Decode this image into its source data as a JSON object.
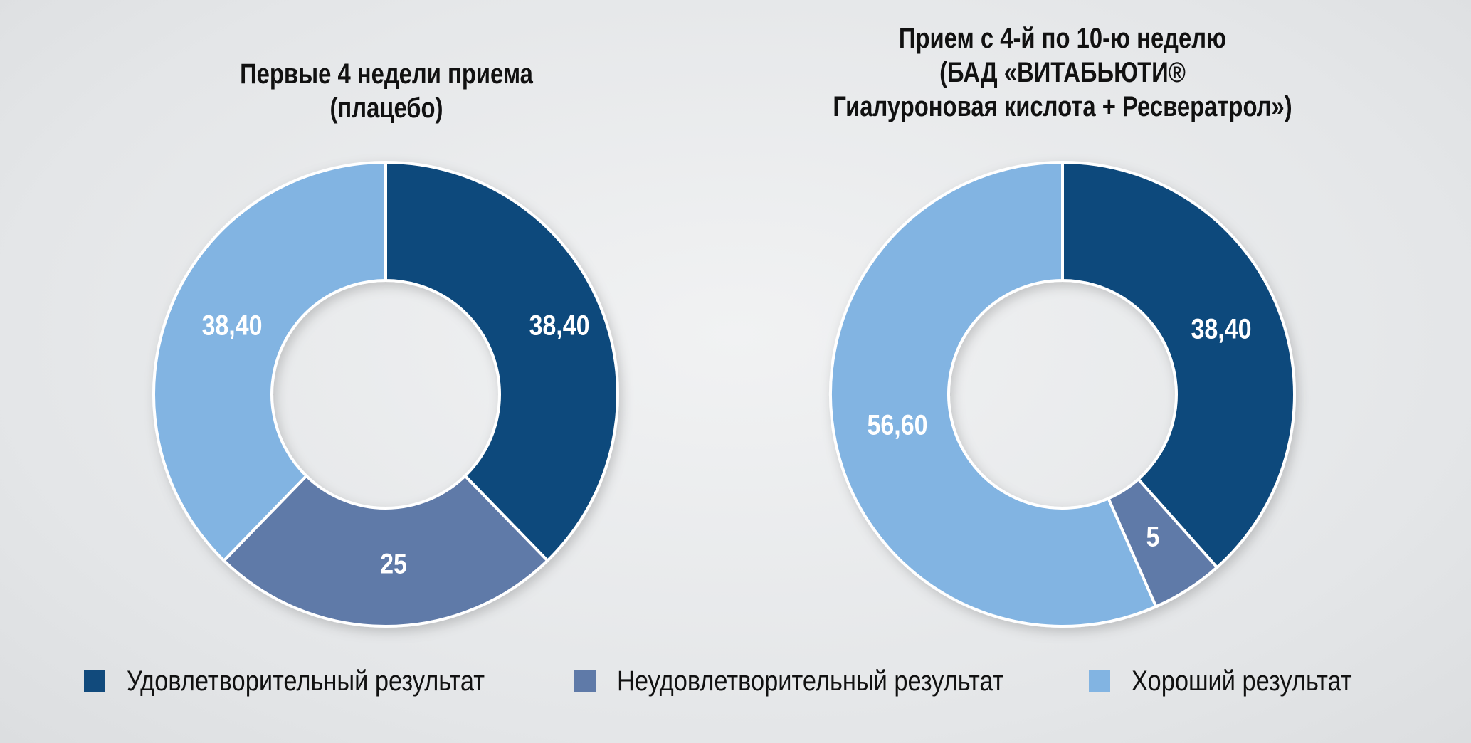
{
  "chart_data": [
    {
      "type": "pie",
      "title": "Первые 4 недели приема\n(плацебо)",
      "categories": [
        "Удовлетворительный результат",
        "Неудовлетворительный результат",
        "Хороший результат"
      ],
      "values": [
        38.4,
        25,
        38.4
      ],
      "value_labels": [
        "38,40",
        "25",
        "38,40"
      ],
      "colors": [
        "#114a7c",
        "#5f7aa8",
        "#82b4e2"
      ]
    },
    {
      "type": "pie",
      "title": "Прием с 4-й по 10-ю неделю\n(БАД «ВИТАБЬЮТИ®\nГиалуроновая кислота + Ресвератрол»)",
      "categories": [
        "Удовлетворительный результат",
        "Неудовлетворительный результат",
        "Хороший результат"
      ],
      "values": [
        38.4,
        5,
        56.6
      ],
      "value_labels": [
        "38,40",
        "5",
        "56,60"
      ],
      "colors": [
        "#114a7c",
        "#5f7aa8",
        "#82b4e2"
      ]
    }
  ],
  "legend": {
    "placement": "bottom",
    "items": [
      {
        "label": "Удовлетворительный результат",
        "color": "#114a7c"
      },
      {
        "label": "Неудовлетворительный результат",
        "color": "#5f7aa8"
      },
      {
        "label": "Хороший результат",
        "color": "#82b4e2"
      }
    ]
  }
}
